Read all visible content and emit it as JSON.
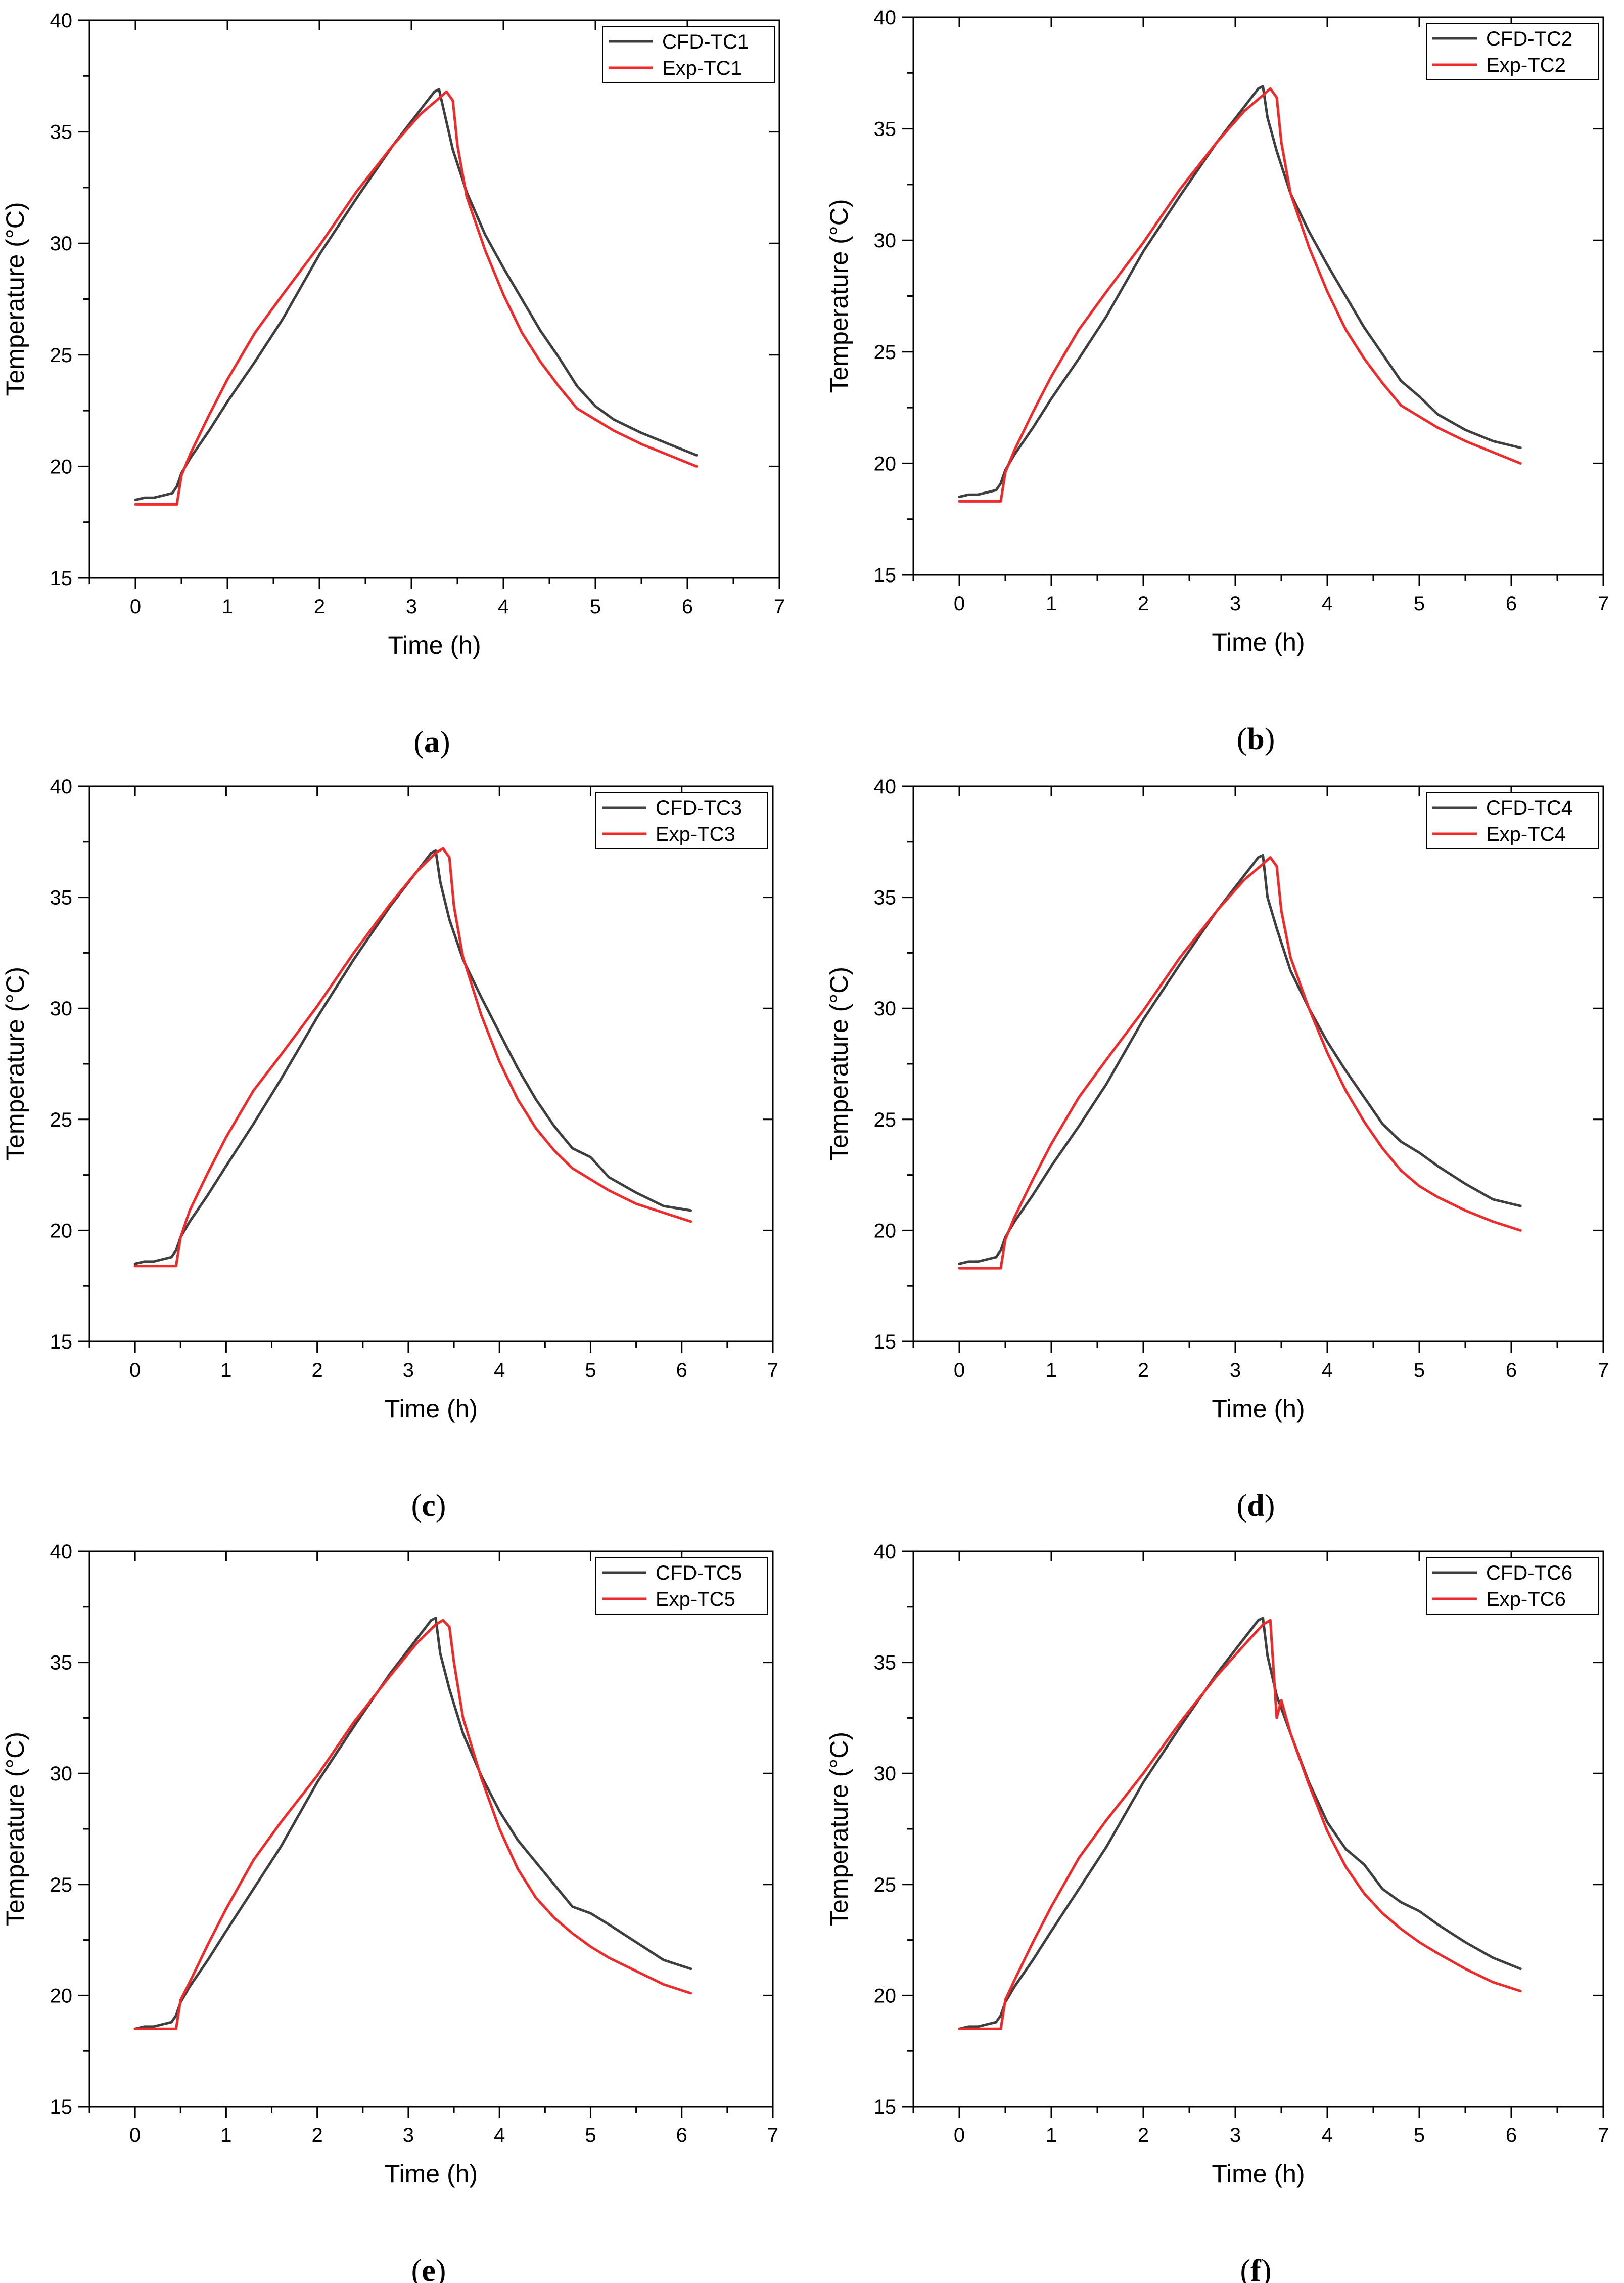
{
  "figure": {
    "colors": {
      "cfd": "#3f3f3f",
      "exp": "#ee2a2a",
      "axis": "#000000",
      "background": "#ffffff"
    }
  },
  "chart_data": [
    {
      "panel_label": "a",
      "type": "line",
      "xlabel": "Time (h)",
      "ylabel": "Temperature (°C)",
      "xlim": [
        -0.5,
        7
      ],
      "ylim": [
        15,
        40
      ],
      "xticks": [
        0,
        1,
        2,
        3,
        4,
        5,
        6,
        7
      ],
      "yticks": [
        15,
        20,
        25,
        30,
        35,
        40
      ],
      "legend_position": "top-right",
      "series": [
        {
          "name": "CFD-TC1",
          "color": "#3f3f3f",
          "x": [
            0,
            0.1,
            0.2,
            0.3,
            0.4,
            0.45,
            0.5,
            0.6,
            0.8,
            1.0,
            1.3,
            1.6,
            2.0,
            2.4,
            2.8,
            3.1,
            3.25,
            3.3,
            3.35,
            3.45,
            3.6,
            3.8,
            4.0,
            4.2,
            4.4,
            4.6,
            4.8,
            5.0,
            5.2,
            5.5,
            5.8,
            6.1
          ],
          "y": [
            18.5,
            18.6,
            18.6,
            18.7,
            18.8,
            19.1,
            19.7,
            20.4,
            21.6,
            22.9,
            24.7,
            26.6,
            29.5,
            32.0,
            34.4,
            36.0,
            36.8,
            36.9,
            36.0,
            34.2,
            32.3,
            30.4,
            28.9,
            27.5,
            26.1,
            24.9,
            23.6,
            22.7,
            22.1,
            21.5,
            21.0,
            20.5
          ]
        },
        {
          "name": "Exp-TC1",
          "color": "#ee2a2a",
          "x": [
            0,
            0.1,
            0.2,
            0.3,
            0.45,
            0.5,
            0.6,
            0.8,
            1.0,
            1.3,
            1.6,
            2.0,
            2.4,
            2.8,
            3.1,
            3.3,
            3.38,
            3.45,
            3.5,
            3.6,
            3.8,
            4.0,
            4.2,
            4.4,
            4.6,
            4.8,
            5.0,
            5.2,
            5.5,
            5.8,
            6.1
          ],
          "y": [
            18.3,
            18.3,
            18.3,
            18.3,
            18.3,
            19.6,
            20.6,
            22.3,
            23.9,
            26.0,
            27.7,
            29.9,
            32.3,
            34.4,
            35.8,
            36.5,
            36.8,
            36.4,
            34.4,
            32.1,
            29.7,
            27.7,
            26.0,
            24.7,
            23.6,
            22.6,
            22.1,
            21.6,
            21.0,
            20.5,
            20.0
          ]
        }
      ]
    },
    {
      "panel_label": "b",
      "type": "line",
      "xlabel": "Time (h)",
      "ylabel": "Temperature (°C)",
      "xlim": [
        -0.5,
        7
      ],
      "ylim": [
        15,
        40
      ],
      "xticks": [
        0,
        1,
        2,
        3,
        4,
        5,
        6,
        7
      ],
      "yticks": [
        15,
        20,
        25,
        30,
        35,
        40
      ],
      "legend_position": "top-right",
      "series": [
        {
          "name": "CFD-TC2",
          "color": "#3f3f3f",
          "x": [
            0,
            0.1,
            0.2,
            0.3,
            0.4,
            0.45,
            0.5,
            0.6,
            0.8,
            1.0,
            1.3,
            1.6,
            2.0,
            2.4,
            2.8,
            3.1,
            3.25,
            3.3,
            3.35,
            3.45,
            3.6,
            3.8,
            4.0,
            4.2,
            4.4,
            4.6,
            4.8,
            5.0,
            5.2,
            5.5,
            5.8,
            6.1
          ],
          "y": [
            18.5,
            18.6,
            18.6,
            18.7,
            18.8,
            19.1,
            19.7,
            20.4,
            21.6,
            22.9,
            24.7,
            26.6,
            29.5,
            32.0,
            34.4,
            36.0,
            36.8,
            36.9,
            35.5,
            34.0,
            32.1,
            30.4,
            28.9,
            27.5,
            26.1,
            24.9,
            23.7,
            23.0,
            22.2,
            21.5,
            21.0,
            20.7
          ]
        },
        {
          "name": "Exp-TC2",
          "color": "#ee2a2a",
          "x": [
            0,
            0.1,
            0.2,
            0.3,
            0.45,
            0.5,
            0.6,
            0.8,
            1.0,
            1.3,
            1.6,
            2.0,
            2.4,
            2.8,
            3.1,
            3.3,
            3.38,
            3.45,
            3.5,
            3.6,
            3.8,
            4.0,
            4.2,
            4.4,
            4.6,
            4.8,
            5.0,
            5.2,
            5.5,
            5.8,
            6.1
          ],
          "y": [
            18.3,
            18.3,
            18.3,
            18.3,
            18.3,
            19.6,
            20.6,
            22.3,
            23.9,
            26.0,
            27.7,
            29.9,
            32.3,
            34.4,
            35.8,
            36.5,
            36.8,
            36.4,
            34.4,
            32.1,
            29.7,
            27.7,
            26.0,
            24.7,
            23.6,
            22.6,
            22.1,
            21.6,
            21.0,
            20.5,
            20.0
          ]
        }
      ]
    },
    {
      "panel_label": "c",
      "type": "line",
      "xlabel": "Time (h)",
      "ylabel": "Temperature (°C)",
      "xlim": [
        -0.5,
        7
      ],
      "ylim": [
        15,
        40
      ],
      "xticks": [
        0,
        1,
        2,
        3,
        4,
        5,
        6,
        7
      ],
      "yticks": [
        15,
        20,
        25,
        30,
        35,
        40
      ],
      "legend_position": "top-right",
      "series": [
        {
          "name": "CFD-TC3",
          "color": "#3f3f3f",
          "x": [
            0,
            0.1,
            0.2,
            0.3,
            0.4,
            0.45,
            0.5,
            0.6,
            0.8,
            1.0,
            1.3,
            1.6,
            2.0,
            2.4,
            2.8,
            3.1,
            3.25,
            3.3,
            3.35,
            3.45,
            3.6,
            3.8,
            4.0,
            4.2,
            4.4,
            4.6,
            4.8,
            5.0,
            5.2,
            5.5,
            5.8,
            6.1
          ],
          "y": [
            18.5,
            18.6,
            18.6,
            18.7,
            18.8,
            19.1,
            19.7,
            20.4,
            21.6,
            22.9,
            24.8,
            26.8,
            29.6,
            32.2,
            34.6,
            36.2,
            37.0,
            37.1,
            35.7,
            34.0,
            32.2,
            30.5,
            28.9,
            27.3,
            25.9,
            24.7,
            23.7,
            23.3,
            22.4,
            21.7,
            21.1,
            20.9
          ]
        },
        {
          "name": "Exp-TC3",
          "color": "#ee2a2a",
          "x": [
            0,
            0.1,
            0.2,
            0.3,
            0.45,
            0.5,
            0.6,
            0.8,
            1.0,
            1.3,
            1.6,
            2.0,
            2.4,
            2.8,
            3.1,
            3.3,
            3.38,
            3.45,
            3.5,
            3.6,
            3.8,
            4.0,
            4.2,
            4.4,
            4.6,
            4.8,
            5.0,
            5.2,
            5.5,
            5.8,
            6.1
          ],
          "y": [
            18.4,
            18.4,
            18.4,
            18.4,
            18.4,
            19.7,
            20.9,
            22.6,
            24.2,
            26.3,
            27.9,
            30.1,
            32.5,
            34.7,
            36.2,
            37.0,
            37.2,
            36.8,
            34.6,
            32.3,
            29.7,
            27.6,
            25.9,
            24.6,
            23.6,
            22.8,
            22.3,
            21.8,
            21.2,
            20.8,
            20.4
          ]
        }
      ]
    },
    {
      "panel_label": "d",
      "type": "line",
      "xlabel": "Time (h)",
      "ylabel": "Temperature (°C)",
      "xlim": [
        -0.5,
        7
      ],
      "ylim": [
        15,
        40
      ],
      "xticks": [
        0,
        1,
        2,
        3,
        4,
        5,
        6,
        7
      ],
      "yticks": [
        15,
        20,
        25,
        30,
        35,
        40
      ],
      "legend_position": "top-right",
      "series": [
        {
          "name": "CFD-TC4",
          "color": "#3f3f3f",
          "x": [
            0,
            0.1,
            0.2,
            0.3,
            0.4,
            0.45,
            0.5,
            0.6,
            0.8,
            1.0,
            1.3,
            1.6,
            2.0,
            2.4,
            2.8,
            3.1,
            3.25,
            3.3,
            3.35,
            3.45,
            3.6,
            3.8,
            4.0,
            4.2,
            4.4,
            4.6,
            4.8,
            5.0,
            5.2,
            5.5,
            5.8,
            6.1
          ],
          "y": [
            18.5,
            18.6,
            18.6,
            18.7,
            18.8,
            19.1,
            19.7,
            20.4,
            21.6,
            22.9,
            24.7,
            26.6,
            29.5,
            32.0,
            34.4,
            36.0,
            36.8,
            36.9,
            35.0,
            33.6,
            31.7,
            30.0,
            28.5,
            27.2,
            26.0,
            24.8,
            24.0,
            23.5,
            22.9,
            22.1,
            21.4,
            21.1
          ]
        },
        {
          "name": "Exp-TC4",
          "color": "#ee2a2a",
          "x": [
            0,
            0.1,
            0.2,
            0.3,
            0.45,
            0.5,
            0.6,
            0.8,
            1.0,
            1.3,
            1.6,
            2.0,
            2.4,
            2.8,
            3.1,
            3.3,
            3.38,
            3.45,
            3.5,
            3.6,
            3.8,
            4.0,
            4.2,
            4.4,
            4.6,
            4.8,
            5.0,
            5.2,
            5.5,
            5.8,
            6.1
          ],
          "y": [
            18.3,
            18.3,
            18.3,
            18.3,
            18.3,
            19.6,
            20.6,
            22.3,
            23.9,
            26.0,
            27.7,
            29.9,
            32.3,
            34.4,
            35.8,
            36.5,
            36.8,
            36.4,
            34.4,
            32.3,
            30.0,
            28.0,
            26.3,
            24.9,
            23.7,
            22.7,
            22.0,
            21.5,
            20.9,
            20.4,
            20.0
          ]
        }
      ]
    },
    {
      "panel_label": "e",
      "type": "line",
      "xlabel": "Time (h)",
      "ylabel": "Temperature (°C)",
      "xlim": [
        -0.5,
        7
      ],
      "ylim": [
        15,
        40
      ],
      "xticks": [
        0,
        1,
        2,
        3,
        4,
        5,
        6,
        7
      ],
      "yticks": [
        15,
        20,
        25,
        30,
        35,
        40
      ],
      "legend_position": "top-right",
      "series": [
        {
          "name": "CFD-TC5",
          "color": "#3f3f3f",
          "x": [
            0,
            0.1,
            0.2,
            0.3,
            0.4,
            0.45,
            0.5,
            0.6,
            0.8,
            1.0,
            1.3,
            1.6,
            2.0,
            2.4,
            2.8,
            3.1,
            3.25,
            3.3,
            3.35,
            3.45,
            3.6,
            3.8,
            4.0,
            4.2,
            4.4,
            4.6,
            4.8,
            5.0,
            5.2,
            5.5,
            5.8,
            6.1
          ],
          "y": [
            18.5,
            18.6,
            18.6,
            18.7,
            18.8,
            19.1,
            19.7,
            20.4,
            21.6,
            22.9,
            24.8,
            26.7,
            29.6,
            32.1,
            34.5,
            36.1,
            36.9,
            37.0,
            35.4,
            33.8,
            31.8,
            29.9,
            28.3,
            27.0,
            26.0,
            25.0,
            24.0,
            23.7,
            23.2,
            22.4,
            21.6,
            21.2
          ]
        },
        {
          "name": "Exp-TC5",
          "color": "#ee2a2a",
          "x": [
            0,
            0.1,
            0.2,
            0.3,
            0.45,
            0.5,
            0.6,
            0.8,
            1.0,
            1.3,
            1.6,
            2.0,
            2.4,
            2.8,
            3.1,
            3.3,
            3.38,
            3.45,
            3.5,
            3.6,
            3.8,
            4.0,
            4.2,
            4.4,
            4.6,
            4.8,
            5.0,
            5.2,
            5.5,
            5.8,
            6.1
          ],
          "y": [
            18.5,
            18.5,
            18.5,
            18.5,
            18.5,
            19.8,
            20.6,
            22.3,
            23.9,
            26.1,
            27.8,
            29.9,
            32.3,
            34.4,
            35.9,
            36.7,
            36.9,
            36.6,
            35.0,
            32.5,
            29.8,
            27.5,
            25.7,
            24.4,
            23.5,
            22.8,
            22.2,
            21.7,
            21.1,
            20.5,
            20.1
          ]
        }
      ]
    },
    {
      "panel_label": "f",
      "type": "line",
      "xlabel": "Time (h)",
      "ylabel": "Temperature (°C)",
      "xlim": [
        -0.5,
        7
      ],
      "ylim": [
        15,
        40
      ],
      "xticks": [
        0,
        1,
        2,
        3,
        4,
        5,
        6,
        7
      ],
      "yticks": [
        15,
        20,
        25,
        30,
        35,
        40
      ],
      "legend_position": "top-right",
      "series": [
        {
          "name": "CFD-TC6",
          "color": "#3f3f3f",
          "x": [
            0,
            0.1,
            0.2,
            0.3,
            0.4,
            0.45,
            0.5,
            0.6,
            0.8,
            1.0,
            1.3,
            1.6,
            2.0,
            2.4,
            2.8,
            3.1,
            3.25,
            3.3,
            3.35,
            3.45,
            3.6,
            3.8,
            4.0,
            4.2,
            4.4,
            4.6,
            4.8,
            5.0,
            5.2,
            5.5,
            5.8,
            6.1
          ],
          "y": [
            18.5,
            18.6,
            18.6,
            18.7,
            18.8,
            19.1,
            19.7,
            20.4,
            21.6,
            22.9,
            24.8,
            26.7,
            29.6,
            32.1,
            34.5,
            36.1,
            36.9,
            37.0,
            35.3,
            33.5,
            31.8,
            29.6,
            27.8,
            26.6,
            25.9,
            24.8,
            24.2,
            23.8,
            23.2,
            22.4,
            21.7,
            21.2
          ]
        },
        {
          "name": "Exp-TC6",
          "color": "#ee2a2a",
          "x": [
            0,
            0.1,
            0.2,
            0.3,
            0.45,
            0.5,
            0.6,
            0.8,
            1.0,
            1.3,
            1.6,
            2.0,
            2.4,
            2.8,
            3.1,
            3.3,
            3.38,
            3.45,
            3.5,
            3.6,
            3.8,
            4.0,
            4.2,
            4.4,
            4.6,
            4.8,
            5.0,
            5.2,
            5.5,
            5.8,
            6.1
          ],
          "y": [
            18.5,
            18.5,
            18.5,
            18.5,
            18.5,
            19.8,
            20.7,
            22.4,
            24.0,
            26.2,
            27.9,
            30.0,
            32.3,
            34.4,
            35.8,
            36.7,
            36.9,
            32.5,
            33.3,
            31.8,
            29.5,
            27.4,
            25.8,
            24.6,
            23.7,
            23.0,
            22.4,
            21.9,
            21.2,
            20.6,
            20.2
          ]
        }
      ]
    }
  ]
}
